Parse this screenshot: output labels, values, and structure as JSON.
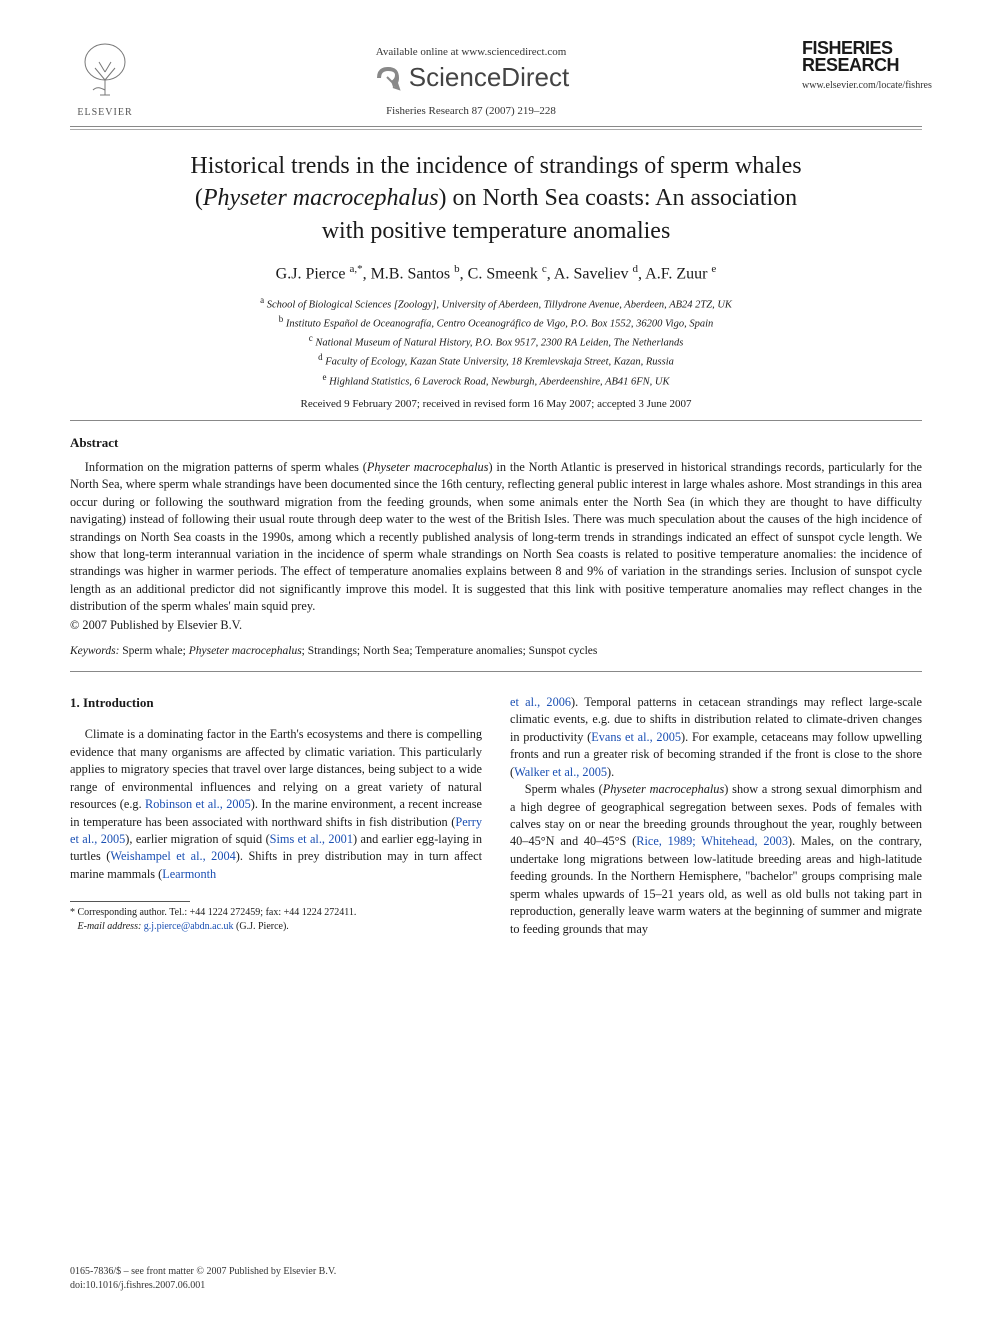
{
  "header": {
    "elsevier_label": "ELSEVIER",
    "available_online": "Available online at www.sciencedirect.com",
    "sciencedirect": "ScienceDirect",
    "journal_ref": "Fisheries Research 87 (2007) 219–228",
    "journal_logo_line1": "FISHERIES",
    "journal_logo_line2": "RESEARCH",
    "journal_url": "www.elsevier.com/locate/fishres"
  },
  "title": "Historical trends in the incidence of strandings of sperm whales (Physeter macrocephalus) on North Sea coasts: An association with positive temperature anomalies",
  "authors_html": "G.J. Pierce <sup>a,*</sup>, M.B. Santos <sup>b</sup>, C. Smeenk <sup>c</sup>, A. Saveliev <sup>d</sup>, A.F. Zuur <sup>e</sup>",
  "affiliations": [
    "<sup>a</sup> School of Biological Sciences [Zoology], University of Aberdeen, Tillydrone Avenue, Aberdeen, AB24 2TZ, UK",
    "<sup>b</sup> Instituto Español de Oceanografía, Centro Oceanográfico de Vigo, P.O. Box 1552, 36200 Vigo, Spain",
    "<sup>c</sup> National Museum of Natural History, P.O. Box 9517, 2300 RA Leiden, The Netherlands",
    "<sup>d</sup> Faculty of Ecology, Kazan State University, 18 Kremlevskaja Street, Kazan, Russia",
    "<sup>e</sup> Highland Statistics, 6 Laverock Road, Newburgh, Aberdeenshire, AB41 6FN, UK"
  ],
  "dates": "Received 9 February 2007; received in revised form 16 May 2007; accepted 3 June 2007",
  "abstract": {
    "heading": "Abstract",
    "body": "Information on the migration patterns of sperm whales (<i>Physeter macrocephalus</i>) in the North Atlantic is preserved in historical strandings records, particularly for the North Sea, where sperm whale strandings have been documented since the 16th century, reflecting general public interest in large whales ashore. Most strandings in this area occur during or following the southward migration from the feeding grounds, when some animals enter the North Sea (in which they are thought to have difficulty navigating) instead of following their usual route through deep water to the west of the British Isles. There was much speculation about the causes of the high incidence of strandings on North Sea coasts in the 1990s, among which a recently published analysis of long-term trends in strandings indicated an effect of sunspot cycle length. We show that long-term interannual variation in the incidence of sperm whale strandings on North Sea coasts is related to positive temperature anomalies: the incidence of strandings was higher in warmer periods. The effect of temperature anomalies explains between 8 and 9% of variation in the strandings series. Inclusion of sunspot cycle length as an additional predictor did not significantly improve this model. It is suggested that this link with positive temperature anomalies may reflect changes in the distribution of the sperm whales' main squid prey.",
    "copyright": "© 2007 Published by Elsevier B.V."
  },
  "keywords": {
    "label": "Keywords:",
    "text": " Sperm whale; Physeter macrocephalus; Strandings; North Sea; Temperature anomalies; Sunspot cycles"
  },
  "intro": {
    "heading": "1. Introduction",
    "col1_p1": "Climate is a dominating factor in the Earth's ecosystems and there is compelling evidence that many organisms are affected by climatic variation. This particularly applies to migratory species that travel over large distances, being subject to a wide range of environmental influences and relying on a great variety of natural resources (e.g. <span class=\"link\">Robinson et al., 2005</span>). In the marine environment, a recent increase in temperature has been associated with northward shifts in fish distribution (<span class=\"link\">Perry et al., 2005</span>), earlier migration of squid (<span class=\"link\">Sims et al., 2001</span>) and earlier egg-laying in turtles (<span class=\"link\">Weishampel et al., 2004</span>). Shifts in prey distribution may in turn affect marine mammals (<span class=\"link\">Learmonth</span>",
    "col2_p1": "<span class=\"link\">et al., 2006</span>). Temporal patterns in cetacean strandings may reflect large-scale climatic events, e.g. due to shifts in distribution related to climate-driven changes in productivity (<span class=\"link\">Evans et al., 2005</span>). For example, cetaceans may follow upwelling fronts and run a greater risk of becoming stranded if the front is close to the shore (<span class=\"link\">Walker et al., 2005</span>).",
    "col2_p2": "Sperm whales (<i>Physeter macrocephalus</i>) show a strong sexual dimorphism and a high degree of geographical segregation between sexes. Pods of females with calves stay on or near the breeding grounds throughout the year, roughly between 40–45°N and 40–45°S (<span class=\"link\">Rice, 1989; Whitehead, 2003</span>). Males, on the contrary, undertake long migrations between low-latitude breeding areas and high-latitude feeding grounds. In the Northern Hemisphere, \"bachelor\" groups comprising male sperm whales upwards of 15–21 years old, as well as old bulls not taking part in reproduction, generally leave warm waters at the beginning of summer and migrate to feeding grounds that may"
  },
  "footnote": {
    "corr": "* Corresponding author. Tel.: +44 1224 272459; fax: +44 1224 272411.",
    "email_label": "E-mail address:",
    "email": "g.j.pierce@abdn.ac.uk",
    "email_who": " (G.J. Pierce)."
  },
  "footer": {
    "line1": "0165-7836/$ – see front matter © 2007 Published by Elsevier B.V.",
    "line2": "doi:10.1016/j.fishres.2007.06.001"
  },
  "colors": {
    "text": "#1a1a1a",
    "link": "#1a4fb3",
    "rule": "#888888",
    "background": "#ffffff"
  }
}
